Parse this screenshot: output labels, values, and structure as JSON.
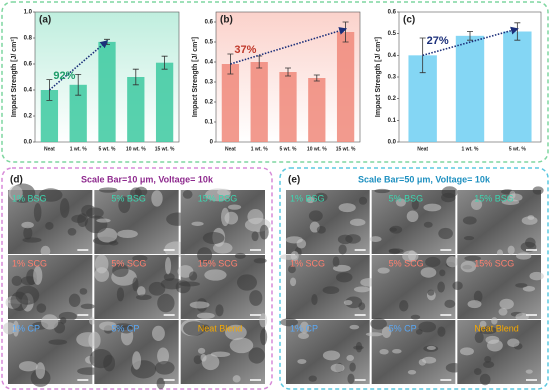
{
  "chart_data": [
    {
      "type": "bar",
      "panel_label": "(a)",
      "ylabel": "Impact Strength [J/ cm²]",
      "categories": [
        "Neat",
        "1 wt. %",
        "5 wt. %",
        "10 wt. %",
        "15 wt. %"
      ],
      "values": [
        0.4,
        0.44,
        0.77,
        0.5,
        0.61
      ],
      "errors": [
        0.08,
        0.08,
        0.02,
        0.06,
        0.05
      ],
      "color": "#3cc9a0",
      "ylim": [
        0,
        1.0
      ],
      "yticks": [
        {
          "value": 0,
          "label": "0.0"
        },
        0.2,
        0.4,
        0.6,
        0.8,
        {
          "value": 1.0,
          "label": "1.0"
        }
      ],
      "annotation": "92%",
      "annotation_color": "#1f9d6a"
    },
    {
      "type": "bar",
      "panel_label": "(b)",
      "ylabel": "Impact Strength [J/ cm²]",
      "categories": [
        "Neat",
        "1 wt. %",
        "5 wt. %",
        "10 wt. %",
        "15 wt. %"
      ],
      "values": [
        0.39,
        0.4,
        0.35,
        0.32,
        0.55
      ],
      "errors": [
        0.05,
        0.03,
        0.02,
        0.015,
        0.05
      ],
      "color": "#f0887a",
      "ylim": [
        0,
        0.65
      ],
      "yticks": [
        0,
        0.1,
        0.2,
        0.3,
        0.4,
        0.5,
        0.6
      ],
      "annotation": "37%",
      "annotation_color": "#c0392b"
    },
    {
      "type": "bar",
      "panel_label": "(c)",
      "ylabel": "Impact Strength [J/ cm²]",
      "categories": [
        "Neat",
        "1 wt. %",
        "5 wt. %"
      ],
      "values": [
        0.4,
        0.49,
        0.51
      ],
      "errors": [
        0.08,
        0.02,
        0.04
      ],
      "color": "#6fcff2",
      "ylim": [
        0,
        0.6
      ],
      "yticks": [
        {
          "value": 0,
          "label": "0.0"
        },
        0.1,
        0.2,
        0.3,
        0.4,
        0.5,
        0.6
      ],
      "annotation": "27%",
      "annotation_color": "#1b2f7a"
    }
  ],
  "sem_panels": [
    {
      "label": "(d)",
      "title": "Scale Bar=10 μm, Voltage= 10k",
      "images": [
        "1% BSG",
        "5% BSG",
        "15% BSG",
        "1% SCG",
        "5% SCG",
        "15% SCG",
        "1% CP",
        "5% CP",
        "Neat Blend"
      ]
    },
    {
      "label": "(e)",
      "title": "Scale Bar=50 μm, Voltage= 10k",
      "images": [
        "1% BSG",
        "5% BSG",
        "15% BSG",
        "1% SCG",
        "5% SCG",
        "15% SCG",
        "1% CP",
        "5% CP",
        "Neat Blend"
      ]
    }
  ]
}
